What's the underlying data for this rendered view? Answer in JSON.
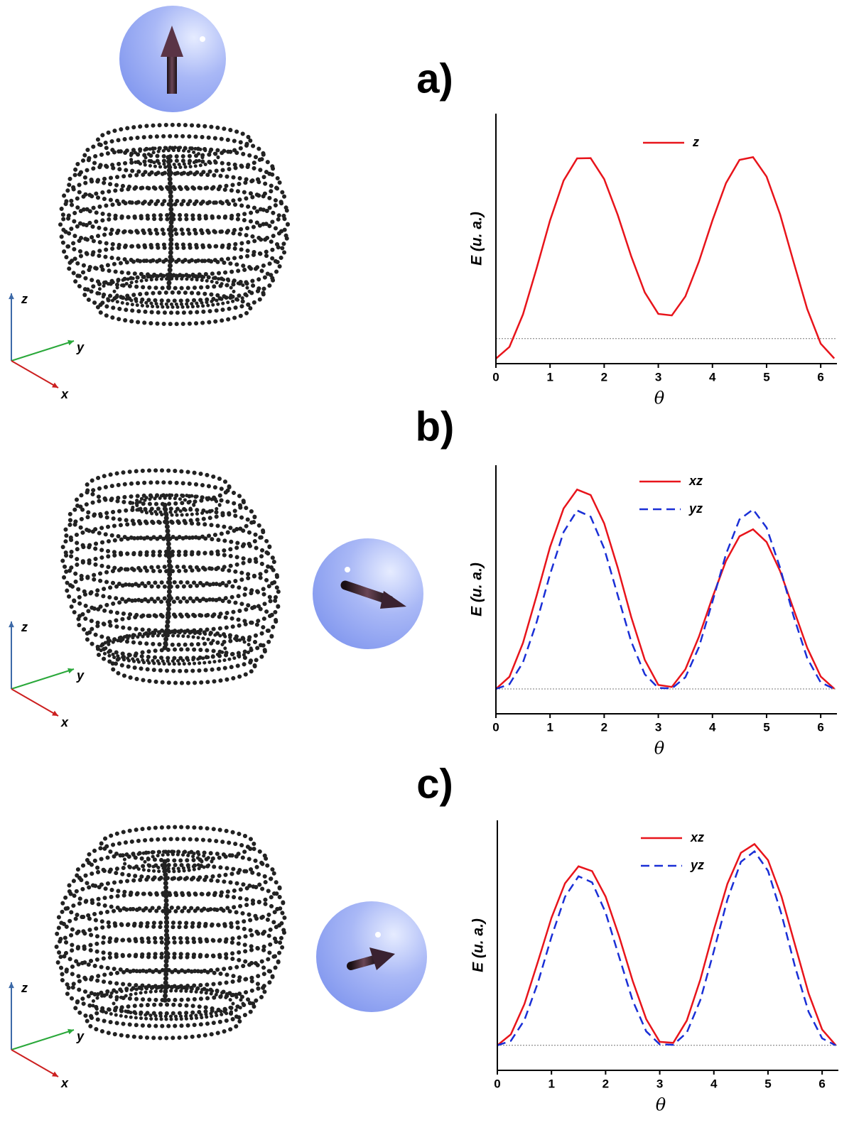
{
  "chart_data": [
    {
      "type": "line",
      "title": "a)",
      "xlabel": "θ",
      "ylabel": "E (u. a.)",
      "x": [
        0,
        0.25,
        0.5,
        0.75,
        1,
        1.25,
        1.5,
        1.75,
        2,
        2.25,
        2.5,
        2.75,
        3,
        3.25,
        3.5,
        3.75,
        4,
        4.25,
        4.5,
        4.75,
        5,
        5.25,
        5.5,
        5.75,
        6,
        6.25
      ],
      "series": [
        {
          "name": "z",
          "color": "#e8141b",
          "style": "solid",
          "values": [
            0.02,
            0.067,
            0.197,
            0.38,
            0.573,
            0.732,
            0.821,
            0.822,
            0.738,
            0.595,
            0.429,
            0.285,
            0.199,
            0.193,
            0.269,
            0.408,
            0.573,
            0.722,
            0.815,
            0.826,
            0.748,
            0.597,
            0.406,
            0.219,
            0.08,
            0.021
          ]
        }
      ],
      "xlim": [
        0,
        6.3
      ],
      "xticks": [
        0,
        1,
        2,
        3,
        4,
        5,
        6
      ],
      "ylim": [
        0,
        1
      ],
      "hline": 0.1
    },
    {
      "type": "line",
      "title": "b)",
      "xlabel": "θ",
      "ylabel": "E (u. a.)",
      "x": [
        0,
        0.25,
        0.5,
        0.75,
        1,
        1.25,
        1.5,
        1.75,
        2,
        2.25,
        2.5,
        2.75,
        3,
        3.25,
        3.5,
        3.75,
        4,
        4.25,
        4.5,
        4.75,
        5,
        5.25,
        5.5,
        5.75,
        6,
        6.25
      ],
      "series": [
        {
          "name": "xz",
          "color": "#e8141b",
          "style": "solid",
          "values": [
            0.1,
            0.149,
            0.285,
            0.474,
            0.671,
            0.826,
            0.902,
            0.88,
            0.766,
            0.588,
            0.389,
            0.217,
            0.116,
            0.108,
            0.179,
            0.31,
            0.468,
            0.615,
            0.714,
            0.742,
            0.691,
            0.574,
            0.42,
            0.266,
            0.15,
            0.101
          ]
        },
        {
          "name": "yz",
          "color": "#1a2fd6",
          "style": "dashed",
          "values": [
            0.1,
            0.119,
            0.207,
            0.367,
            0.561,
            0.731,
            0.818,
            0.793,
            0.665,
            0.477,
            0.29,
            0.159,
            0.104,
            0.102,
            0.147,
            0.268,
            0.451,
            0.642,
            0.782,
            0.822,
            0.749,
            0.587,
            0.392,
            0.224,
            0.126,
            0.1
          ]
        }
      ],
      "xlim": [
        0,
        6.3
      ],
      "xticks": [
        0,
        1,
        2,
        3,
        4,
        5,
        6
      ],
      "ylim": [
        0,
        1
      ],
      "hline": 0.1
    },
    {
      "type": "line",
      "title": "c)",
      "xlabel": "θ",
      "ylabel": "E (u. a.)",
      "x": [
        0,
        0.25,
        0.5,
        0.75,
        1,
        1.25,
        1.5,
        1.75,
        2,
        2.25,
        2.5,
        2.75,
        3,
        3.25,
        3.5,
        3.75,
        4,
        4.25,
        4.5,
        4.75,
        5,
        5.25,
        5.5,
        5.75,
        6,
        6.25
      ],
      "series": [
        {
          "name": "xz",
          "color": "#e8141b",
          "style": "solid",
          "values": [
            0.1,
            0.144,
            0.265,
            0.435,
            0.61,
            0.748,
            0.816,
            0.797,
            0.695,
            0.536,
            0.358,
            0.205,
            0.114,
            0.11,
            0.199,
            0.363,
            0.562,
            0.746,
            0.87,
            0.905,
            0.841,
            0.695,
            0.501,
            0.308,
            0.163,
            0.101
          ]
        },
        {
          "name": "yz",
          "color": "#1a2fd6",
          "style": "dashed",
          "values": [
            0.1,
            0.118,
            0.201,
            0.351,
            0.534,
            0.694,
            0.776,
            0.752,
            0.631,
            0.454,
            0.279,
            0.156,
            0.104,
            0.102,
            0.151,
            0.281,
            0.477,
            0.683,
            0.834,
            0.876,
            0.798,
            0.624,
            0.414,
            0.234,
            0.128,
            0.1
          ]
        }
      ],
      "xlim": [
        0,
        6.3
      ],
      "xticks": [
        0,
        1,
        2,
        3,
        4,
        5,
        6
      ],
      "ylim": [
        0,
        1
      ],
      "hline": 0.1
    }
  ],
  "triad_labels": [
    "z",
    "y",
    "x"
  ]
}
